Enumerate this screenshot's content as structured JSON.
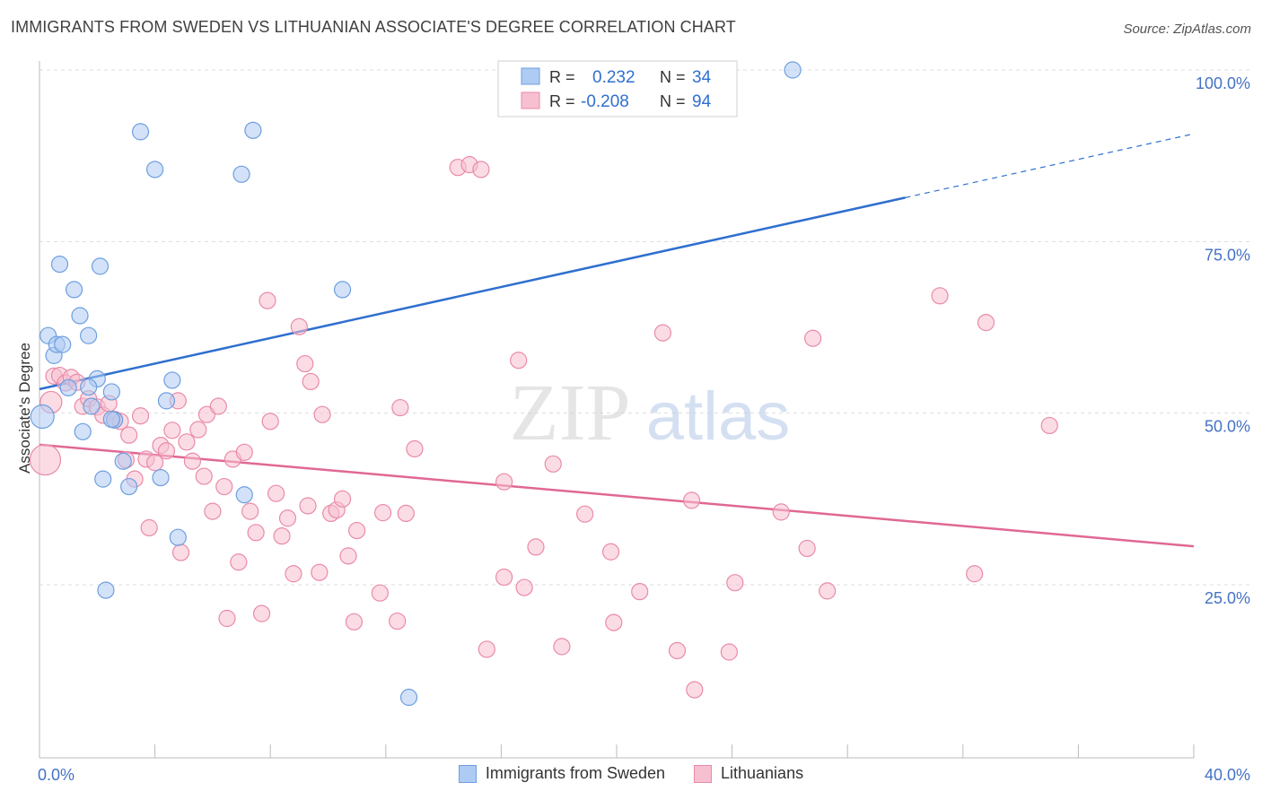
{
  "title": "IMMIGRANTS FROM SWEDEN VS LITHUANIAN ASSOCIATE'S DEGREE CORRELATION CHART",
  "source": "Source: ZipAtlas.com",
  "watermark": {
    "part1": "ZIP",
    "part2": "atlas"
  },
  "colors": {
    "blue_fill": "#aecbf3",
    "blue_stroke": "#6d9fe0",
    "blue_line": "#2f6fcf",
    "pink_fill": "#f7c0d0",
    "pink_stroke": "#ea8aa8",
    "pink_line": "#e06894",
    "axis_text": "#4472c4",
    "grid": "#dddddd"
  },
  "legend_box": {
    "rows": [
      {
        "r_label": "R =",
        "r_value": "0.232",
        "n_label": "N =",
        "n_value": "34"
      },
      {
        "r_label": "R =",
        "r_value": "-0.208",
        "n_label": "N =",
        "n_value": "94"
      }
    ]
  },
  "chart_data": {
    "type": "scatter",
    "xlabel": "",
    "ylabel": "Associate's Degree",
    "xlim": [
      0,
      40
    ],
    "ylim": [
      0,
      104
    ],
    "x_tick_labels": [
      {
        "value": 0,
        "label": "0.0%"
      },
      {
        "value": 40,
        "label": "40.0%"
      }
    ],
    "y_tick_labels": [
      {
        "value": 25,
        "label": "25.0%"
      },
      {
        "value": 50,
        "label": "50.0%"
      },
      {
        "value": 75,
        "label": "75.0%"
      },
      {
        "value": 100,
        "label": "100.0%"
      }
    ],
    "grid": true,
    "legend_position": "bottom",
    "series": [
      {
        "name": "Immigrants from Sweden",
        "color": "#aecbf3",
        "trend": {
          "x": [
            0,
            30,
            40
          ],
          "y": [
            53.5,
            81.4,
            90.7
          ],
          "solid_until": 30
        },
        "points": [
          [
            0.1,
            49.5
          ],
          [
            0.3,
            61.3
          ],
          [
            0.5,
            58.4
          ],
          [
            0.6,
            60.0
          ],
          [
            0.7,
            71.7
          ],
          [
            0.8,
            60.0
          ],
          [
            1.0,
            53.7
          ],
          [
            1.2,
            68.0
          ],
          [
            1.4,
            64.2
          ],
          [
            1.5,
            47.3
          ],
          [
            1.7,
            61.3
          ],
          [
            1.8,
            51.0
          ],
          [
            2.0,
            55.0
          ],
          [
            2.1,
            71.4
          ],
          [
            2.2,
            40.4
          ],
          [
            2.3,
            24.2
          ],
          [
            2.5,
            53.1
          ],
          [
            2.6,
            49.0
          ],
          [
            2.9,
            43.0
          ],
          [
            3.1,
            39.3
          ],
          [
            3.5,
            91.0
          ],
          [
            4.0,
            85.5
          ],
          [
            4.2,
            40.6
          ],
          [
            4.4,
            51.8
          ],
          [
            4.6,
            54.8
          ],
          [
            4.8,
            31.9
          ],
          [
            7.0,
            84.8
          ],
          [
            7.1,
            38.1
          ],
          [
            7.4,
            91.2
          ],
          [
            10.5,
            68.0
          ],
          [
            12.8,
            8.6
          ],
          [
            26.1,
            100.0
          ],
          [
            1.7,
            53.8
          ],
          [
            2.5,
            49.1
          ]
        ]
      },
      {
        "name": "Lithuanians",
        "color": "#f7c0d0",
        "trend": {
          "x": [
            0,
            40
          ],
          "y": [
            45.4,
            30.6
          ]
        },
        "points": [
          [
            0.2,
            43.2
          ],
          [
            0.4,
            51.6
          ],
          [
            0.5,
            55.4
          ],
          [
            0.7,
            55.5
          ],
          [
            0.9,
            54.4
          ],
          [
            1.1,
            55.2
          ],
          [
            1.3,
            54.5
          ],
          [
            1.5,
            51.0
          ],
          [
            1.7,
            52.1
          ],
          [
            2.0,
            50.9
          ],
          [
            2.2,
            49.7
          ],
          [
            2.4,
            51.4
          ],
          [
            2.6,
            49.1
          ],
          [
            2.8,
            48.8
          ],
          [
            3.0,
            43.2
          ],
          [
            3.1,
            46.8
          ],
          [
            3.3,
            40.4
          ],
          [
            3.5,
            49.6
          ],
          [
            3.7,
            43.3
          ],
          [
            3.8,
            33.3
          ],
          [
            4.0,
            42.8
          ],
          [
            4.2,
            45.3
          ],
          [
            4.4,
            44.5
          ],
          [
            4.6,
            47.5
          ],
          [
            4.8,
            51.8
          ],
          [
            4.9,
            29.7
          ],
          [
            5.1,
            45.8
          ],
          [
            5.3,
            43.0
          ],
          [
            5.5,
            47.6
          ],
          [
            5.7,
            40.8
          ],
          [
            5.8,
            49.8
          ],
          [
            6.0,
            35.7
          ],
          [
            6.2,
            51.0
          ],
          [
            6.4,
            39.3
          ],
          [
            6.5,
            20.1
          ],
          [
            6.7,
            43.3
          ],
          [
            6.9,
            28.3
          ],
          [
            7.1,
            44.3
          ],
          [
            7.3,
            35.7
          ],
          [
            7.5,
            32.6
          ],
          [
            7.7,
            20.8
          ],
          [
            7.9,
            66.4
          ],
          [
            8.0,
            48.8
          ],
          [
            8.2,
            38.3
          ],
          [
            8.4,
            32.1
          ],
          [
            8.6,
            34.7
          ],
          [
            8.8,
            26.6
          ],
          [
            9.0,
            62.6
          ],
          [
            9.2,
            57.2
          ],
          [
            9.3,
            36.5
          ],
          [
            9.4,
            54.6
          ],
          [
            9.7,
            26.8
          ],
          [
            9.8,
            49.8
          ],
          [
            10.1,
            35.4
          ],
          [
            10.3,
            35.9
          ],
          [
            10.5,
            37.5
          ],
          [
            10.7,
            29.2
          ],
          [
            10.9,
            19.6
          ],
          [
            11.0,
            32.9
          ],
          [
            11.8,
            23.8
          ],
          [
            11.9,
            35.5
          ],
          [
            12.4,
            19.7
          ],
          [
            12.5,
            50.8
          ],
          [
            12.7,
            35.4
          ],
          [
            13.0,
            44.8
          ],
          [
            14.5,
            85.8
          ],
          [
            14.9,
            86.2
          ],
          [
            15.3,
            85.5
          ],
          [
            15.5,
            15.6
          ],
          [
            16.1,
            26.1
          ],
          [
            16.1,
            40.0
          ],
          [
            16.6,
            57.7
          ],
          [
            16.8,
            24.6
          ],
          [
            17.2,
            30.5
          ],
          [
            17.8,
            42.6
          ],
          [
            18.1,
            16.0
          ],
          [
            18.9,
            35.3
          ],
          [
            19.8,
            29.8
          ],
          [
            19.9,
            19.5
          ],
          [
            20.8,
            24.0
          ],
          [
            21.6,
            61.7
          ],
          [
            22.1,
            15.4
          ],
          [
            22.6,
            37.3
          ],
          [
            22.7,
            9.7
          ],
          [
            23.9,
            15.2
          ],
          [
            24.1,
            25.3
          ],
          [
            25.7,
            35.6
          ],
          [
            26.6,
            30.3
          ],
          [
            26.8,
            60.9
          ],
          [
            27.3,
            24.1
          ],
          [
            31.2,
            67.1
          ],
          [
            32.4,
            26.6
          ],
          [
            32.8,
            63.2
          ],
          [
            35.0,
            48.2
          ]
        ]
      }
    ]
  },
  "legend_bottom": [
    {
      "label": "Immigrants from Sweden"
    },
    {
      "label": "Lithuanians"
    }
  ]
}
